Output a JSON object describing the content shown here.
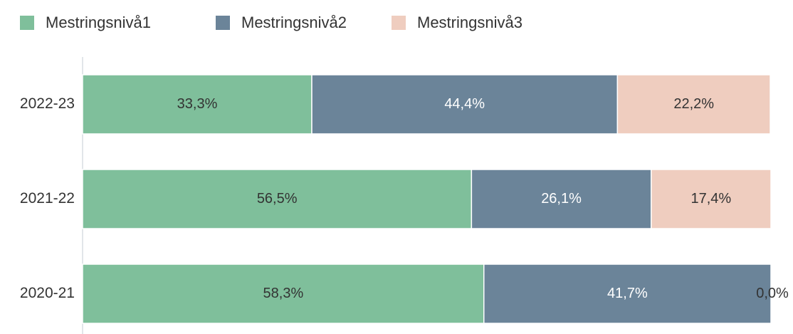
{
  "chart_data": {
    "type": "stacked-bar-horizontal",
    "categories": [
      "2022-23",
      "2021-22",
      "2020-21"
    ],
    "series": [
      {
        "name": "Mestringsnivå1",
        "color": "#7fbf9b",
        "label_color": "#333333",
        "values": [
          33.3,
          56.5,
          58.3
        ],
        "value_labels": [
          "33,3%",
          "56,5%",
          "58,3%"
        ]
      },
      {
        "name": "Mestringsnivå2",
        "color": "#6b8499",
        "label_color": "#ffffff",
        "values": [
          44.4,
          26.1,
          41.7
        ],
        "value_labels": [
          "44,4%",
          "26,1%",
          "41,7%"
        ]
      },
      {
        "name": "Mestringsnivå3",
        "color": "#efcdbf",
        "label_color": "#333333",
        "values": [
          22.2,
          17.4,
          0.0
        ],
        "value_labels": [
          "22,2%",
          "17,4%",
          "0,0%"
        ]
      }
    ],
    "xlim": [
      0,
      100
    ],
    "legend": "top-left"
  }
}
